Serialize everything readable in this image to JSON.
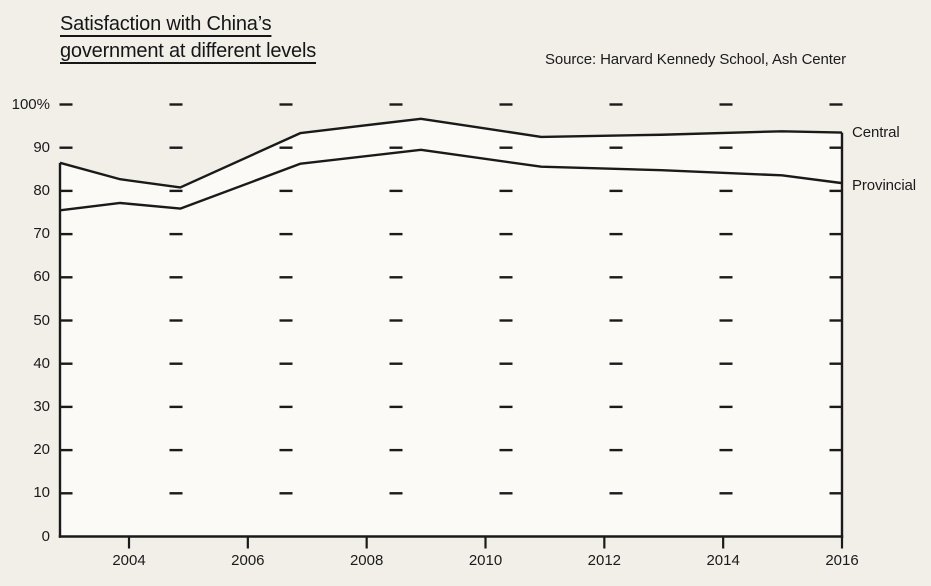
{
  "page": {
    "background_color": "#f2efe9",
    "plot_fill_color": "#fbfaf7",
    "line_color": "#1a1a1a",
    "text_color": "#1b1b1b"
  },
  "header": {
    "title_line1": "Satisfaction with China’s",
    "title_line2": "government at different levels",
    "source": "Source: Harvard Kennedy School, Ash Center"
  },
  "chart_data": {
    "type": "line",
    "title": "Satisfaction with China’s government at different levels",
    "source": "Source: Harvard Kennedy School, Ash Center",
    "x": [
      2003,
      2004,
      2005,
      2007,
      2009,
      2011,
      2013,
      2015,
      2016
    ],
    "series": [
      {
        "name": "Central",
        "values": [
          86.5,
          82.7,
          80.8,
          93.4,
          96.7,
          92.5,
          93.0,
          93.8,
          93.5
        ]
      },
      {
        "name": "Provincial",
        "values": [
          75.5,
          77.2,
          75.9,
          86.3,
          89.5,
          85.6,
          84.8,
          83.6,
          81.8
        ]
      }
    ],
    "xlim": [
      2003,
      2016
    ],
    "ylim": [
      0,
      100
    ],
    "x_ticks": [
      2004,
      2006,
      2008,
      2010,
      2012,
      2014,
      2016
    ],
    "y_ticks": [
      0,
      10,
      20,
      30,
      40,
      50,
      60,
      70,
      80,
      90,
      100
    ],
    "y_tick_labels": [
      "0",
      "10",
      "20",
      "30",
      "40",
      "50",
      "60",
      "70",
      "80",
      "90",
      "100%"
    ],
    "grid": "short horizontal dash marks in 8 columns at every 10-unit row",
    "legend_position": "labels at right end of each line",
    "area_fill": "white band filled below Central line down to x-axis"
  }
}
